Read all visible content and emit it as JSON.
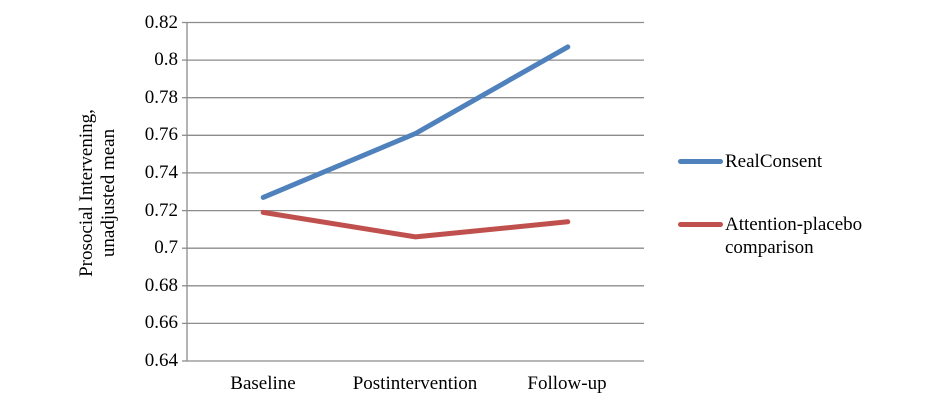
{
  "chart_data": {
    "type": "line",
    "title": "",
    "categories": [
      "Baseline",
      "Postintervention",
      "Follow-up"
    ],
    "series": [
      {
        "name": "RealConsent",
        "color": "#4F81BD",
        "values": [
          0.727,
          0.761,
          0.807
        ],
        "legend_lines": [
          "RealConsent"
        ]
      },
      {
        "name": "Attention-placebo comparison",
        "color": "#C0504D",
        "values": [
          0.719,
          0.706,
          0.714
        ],
        "legend_lines": [
          "Attention-placebo",
          "comparison"
        ]
      }
    ],
    "xlabel": "",
    "ylabel": "Prosocial Intervening, unadjusted mean",
    "ylabel_lines": [
      "Prosocial Intervening,",
      "unadjusted mean"
    ],
    "ylim": [
      0.64,
      0.82
    ],
    "yticks": [
      0.64,
      0.66,
      0.68,
      0.7,
      0.72,
      0.74,
      0.76,
      0.78,
      0.8,
      0.82
    ],
    "ytick_labels": [
      "0.64",
      "0.66",
      "0.68",
      "0.7",
      "0.72",
      "0.74",
      "0.76",
      "0.78",
      "0.8",
      "0.82"
    ],
    "grid": true,
    "gridline_color": "#8C8C8C",
    "axis_color": "#8C8C8C",
    "line_width": 5,
    "legend_position": "right",
    "background_color": "#FFFFFF"
  }
}
